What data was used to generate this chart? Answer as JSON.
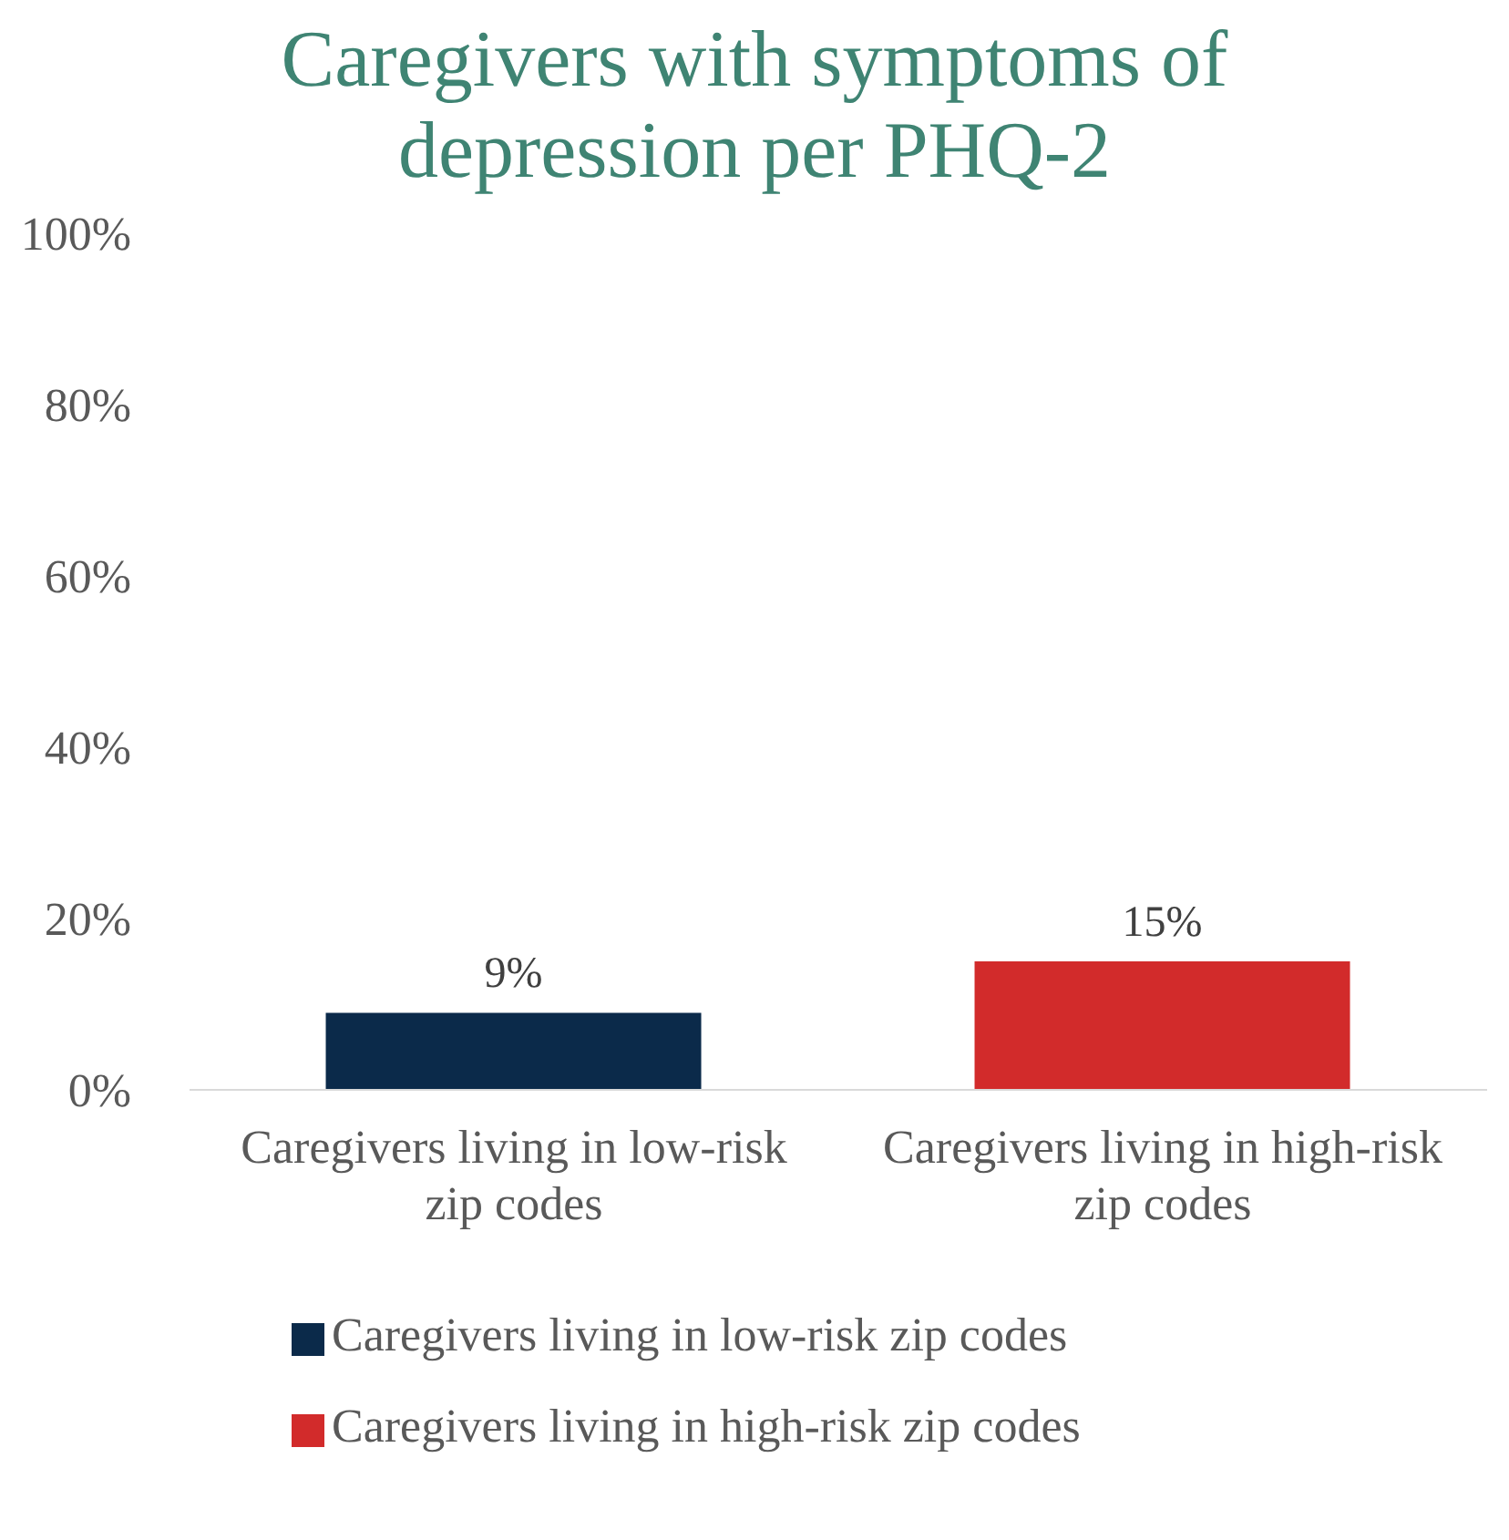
{
  "chart_data": {
    "type": "bar",
    "title": "Caregivers with symptoms of depression per PHQ-2",
    "categories": [
      "Caregivers living in low-risk zip codes",
      "Caregivers living in high-risk zip codes"
    ],
    "series": [
      {
        "name": "Caregivers living in low-risk zip codes",
        "color": "#0b2a4a",
        "values": [
          9,
          null
        ],
        "value_labels": [
          "9%",
          null
        ]
      },
      {
        "name": "Caregivers living in high-risk zip codes",
        "color": "#d22b2b",
        "values": [
          null,
          15
        ],
        "value_labels": [
          null,
          "15%"
        ]
      }
    ],
    "ylim": [
      0,
      100
    ],
    "yticks": [
      {
        "value": 0,
        "label": "0%"
      },
      {
        "value": 20,
        "label": "20%"
      },
      {
        "value": 40,
        "label": "40%"
      },
      {
        "value": 60,
        "label": "60%"
      },
      {
        "value": 80,
        "label": "80%"
      },
      {
        "value": 100,
        "label": "100%"
      }
    ],
    "grid": false,
    "legend": "bottom"
  }
}
